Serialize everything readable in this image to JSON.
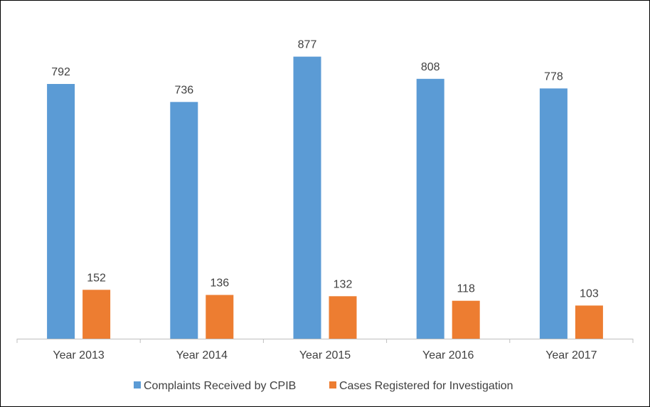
{
  "chart_data": {
    "type": "bar",
    "title": "",
    "xlabel": "",
    "ylabel": "",
    "ylim": [
      0,
      950
    ],
    "grid": false,
    "legend_position": "bottom",
    "categories": [
      "Year 2013",
      "Year 2014",
      "Year 2015",
      "Year 2016",
      "Year 2017"
    ],
    "series": [
      {
        "name": "Complaints Received by CPIB",
        "color": "#5B9BD5",
        "values": [
          792,
          736,
          877,
          808,
          778
        ],
        "labels": [
          "792",
          "736",
          "877",
          "808",
          "778"
        ]
      },
      {
        "name": "Cases Registered for Investigation",
        "color": "#ED7D31",
        "values": [
          152,
          136,
          132,
          118,
          103
        ],
        "labels": [
          "152",
          "136",
          "132",
          "118",
          "103"
        ]
      }
    ],
    "axis_color": "#BFBFBF",
    "text_color": "#404040"
  }
}
